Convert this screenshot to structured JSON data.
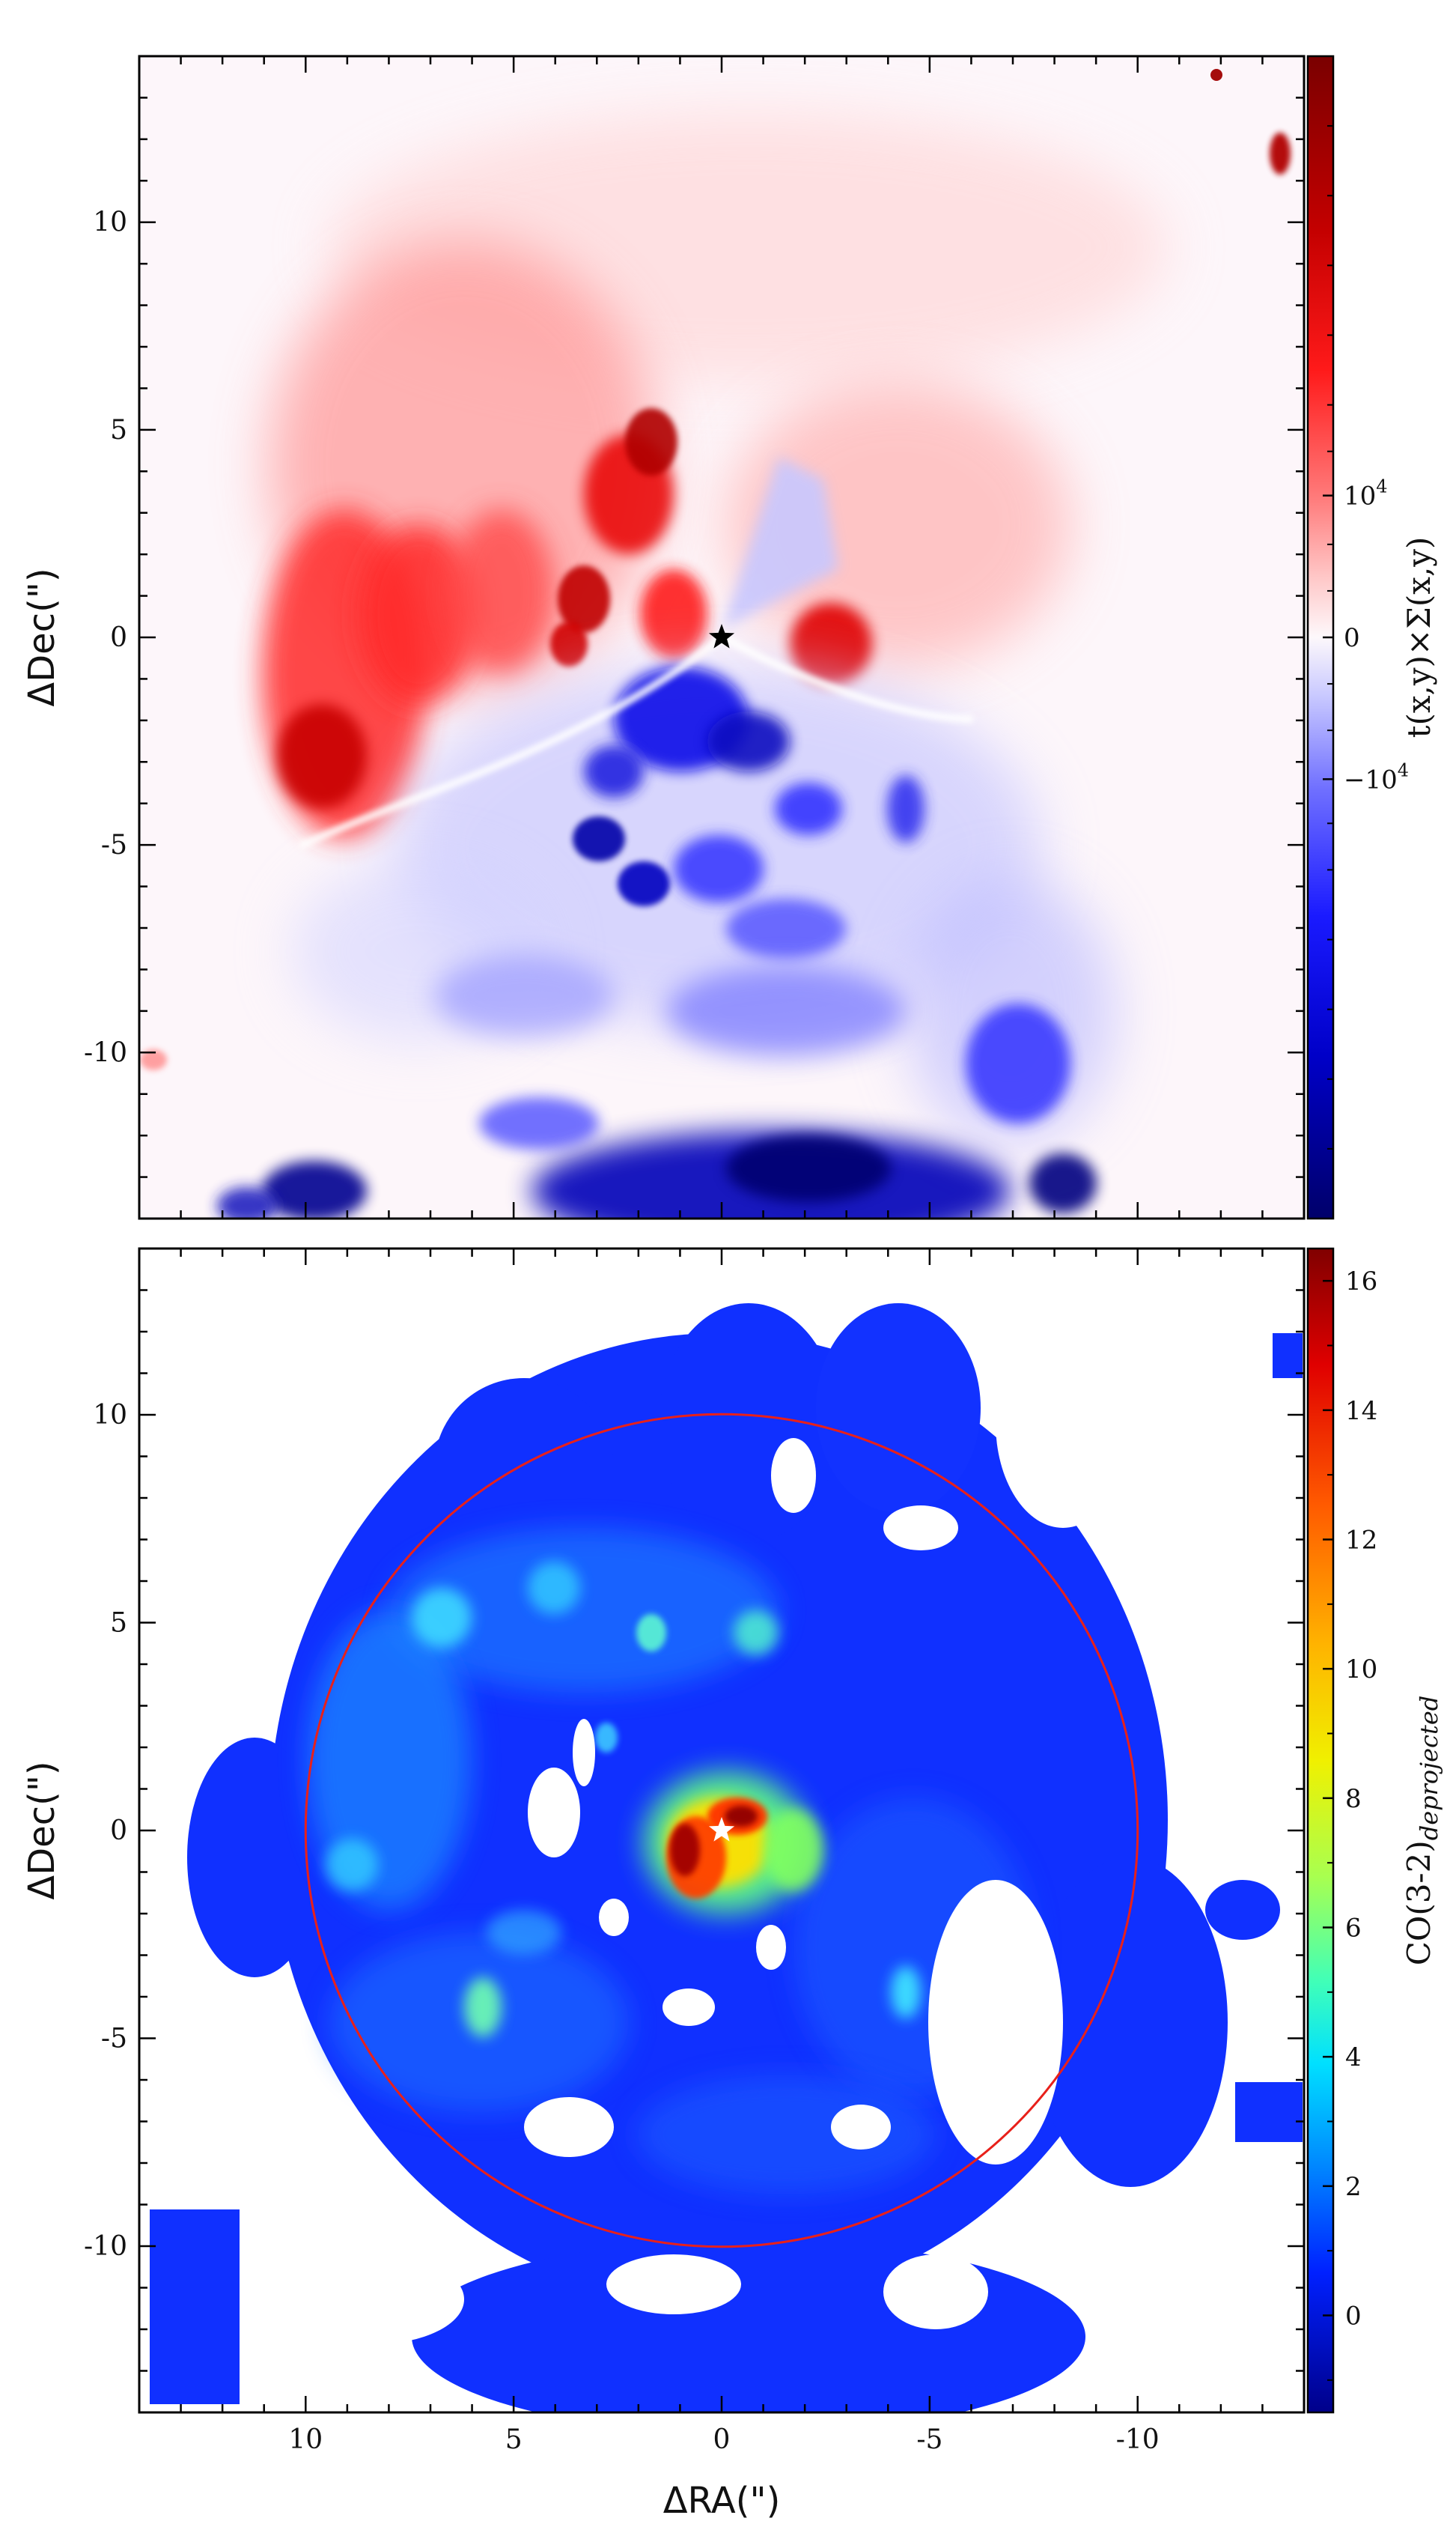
{
  "chart_data": [
    {
      "type": "heatmap",
      "panel": "top",
      "xlim": [
        14,
        -14
      ],
      "ylim": [
        -14,
        14
      ],
      "x_ticks": [],
      "y_ticks": [
        10,
        5,
        0,
        -5,
        -10
      ],
      "y_tick_labels": [
        "10",
        "5",
        "0",
        "-5",
        "-10"
      ],
      "xlabel": "",
      "ylabel": "ΔDec(\")",
      "colorbar": {
        "label_main": "t(x,y)×Σ(x,y)",
        "colormap": "seismic",
        "ticks": [
          {
            "value": 10000,
            "label": "10",
            "exp": "4"
          },
          {
            "value": 0,
            "label": "0",
            "exp": ""
          },
          {
            "value": -10000,
            "label": "−10",
            "exp": "4"
          }
        ]
      },
      "marker": {
        "symbol": "star",
        "x": 0,
        "y": 0,
        "color": "#000000"
      }
    },
    {
      "type": "heatmap",
      "panel": "bottom",
      "xlim": [
        14,
        -14
      ],
      "ylim": [
        -14,
        14
      ],
      "x_ticks": [
        10,
        5,
        0,
        -5,
        -10
      ],
      "x_tick_labels": [
        "10",
        "5",
        "0",
        "-5",
        "-10"
      ],
      "y_ticks": [
        10,
        5,
        0,
        -5,
        -10
      ],
      "y_tick_labels": [
        "10",
        "5",
        "0",
        "-5",
        "-10"
      ],
      "xlabel": "ΔRA(\")",
      "ylabel": "ΔDec(\")",
      "colorbar": {
        "label_main": "CO(3-2)",
        "label_sub": "deprojected",
        "colormap": "jet",
        "range": [
          -1.5,
          16.5
        ],
        "ticks": [
          16,
          14,
          12,
          10,
          8,
          6,
          4,
          2,
          0
        ],
        "tick_labels": [
          "16",
          "14",
          "12",
          "10",
          "8",
          "6",
          "4",
          "2",
          "0"
        ]
      },
      "circle": {
        "center": [
          0,
          0
        ],
        "radius": 10,
        "color": "#e8201a"
      },
      "marker": {
        "symbol": "star",
        "x": 0,
        "y": 0,
        "color": "#ffffff"
      }
    }
  ]
}
